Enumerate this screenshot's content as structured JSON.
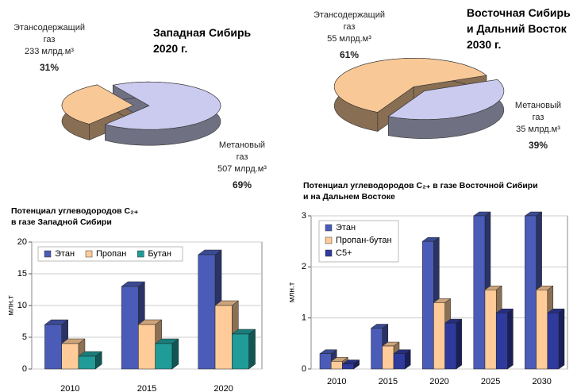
{
  "chart_data": [
    {
      "type": "pie",
      "title": [
        "Западная Сибирь",
        "2020 г."
      ],
      "categories": [
        "Этансодержащий газ",
        "Метановый газ"
      ],
      "values": [
        31,
        69
      ],
      "value_labels": [
        "31%",
        "69%"
      ],
      "volume_labels": [
        "233 млрд.м³",
        "507 млрд.м³"
      ],
      "colors": [
        "#f8c896",
        "#cbcbef"
      ]
    },
    {
      "type": "pie",
      "title": [
        "Восточная Сибирь",
        "и Дальний Восток",
        "2030 г."
      ],
      "categories": [
        "Этансодержащий газ",
        "Метановый газ"
      ],
      "values": [
        61,
        39
      ],
      "value_labels": [
        "61%",
        "39%"
      ],
      "volume_labels": [
        "55 млрд.м³",
        "35 млрд.м³"
      ],
      "colors": [
        "#f8c896",
        "#cbcbef"
      ]
    },
    {
      "type": "bar",
      "title": [
        "Потенциал углеводородов C₂₊",
        "в газе Западной Сибири"
      ],
      "ylabel": "млн.т",
      "categories": [
        "2010",
        "2015",
        "2020"
      ],
      "series": [
        {
          "name": "Этан",
          "color": "#4a5cb8",
          "values": [
            7,
            13,
            18
          ]
        },
        {
          "name": "Пропан",
          "color": "#ffcc99",
          "values": [
            4,
            7,
            10
          ]
        },
        {
          "name": "Бутан",
          "color": "#1f9c98",
          "values": [
            2,
            4,
            5.5
          ]
        }
      ],
      "ylim": [
        0,
        20
      ],
      "yticks": [
        0,
        5,
        10,
        15,
        20
      ],
      "grid": true,
      "legend": "top-left",
      "legend_layout": "horizontal"
    },
    {
      "type": "bar",
      "title": [
        "Потенциал углеводородов C₂₊ в газе Восточной Сибири",
        "и на Дальнем Востоке"
      ],
      "ylabel": "млн.т",
      "categories": [
        "2010",
        "2015",
        "2020",
        "2025",
        "2030"
      ],
      "series": [
        {
          "name": "Этан",
          "color": "#4a5cb8",
          "values": [
            0.3,
            0.8,
            2.5,
            3,
            3
          ]
        },
        {
          "name": "Пропан-бутан",
          "color": "#ffcc99",
          "values": [
            0.15,
            0.45,
            1.3,
            1.55,
            1.55
          ]
        },
        {
          "name": "С5+",
          "color": "#2f3a9e",
          "values": [
            0.1,
            0.3,
            0.9,
            1.1,
            1.1
          ]
        }
      ],
      "ylim": [
        0,
        3
      ],
      "yticks": [
        0,
        1,
        2,
        3
      ],
      "grid": true,
      "legend": "top-left",
      "legend_layout": "vertical"
    }
  ]
}
